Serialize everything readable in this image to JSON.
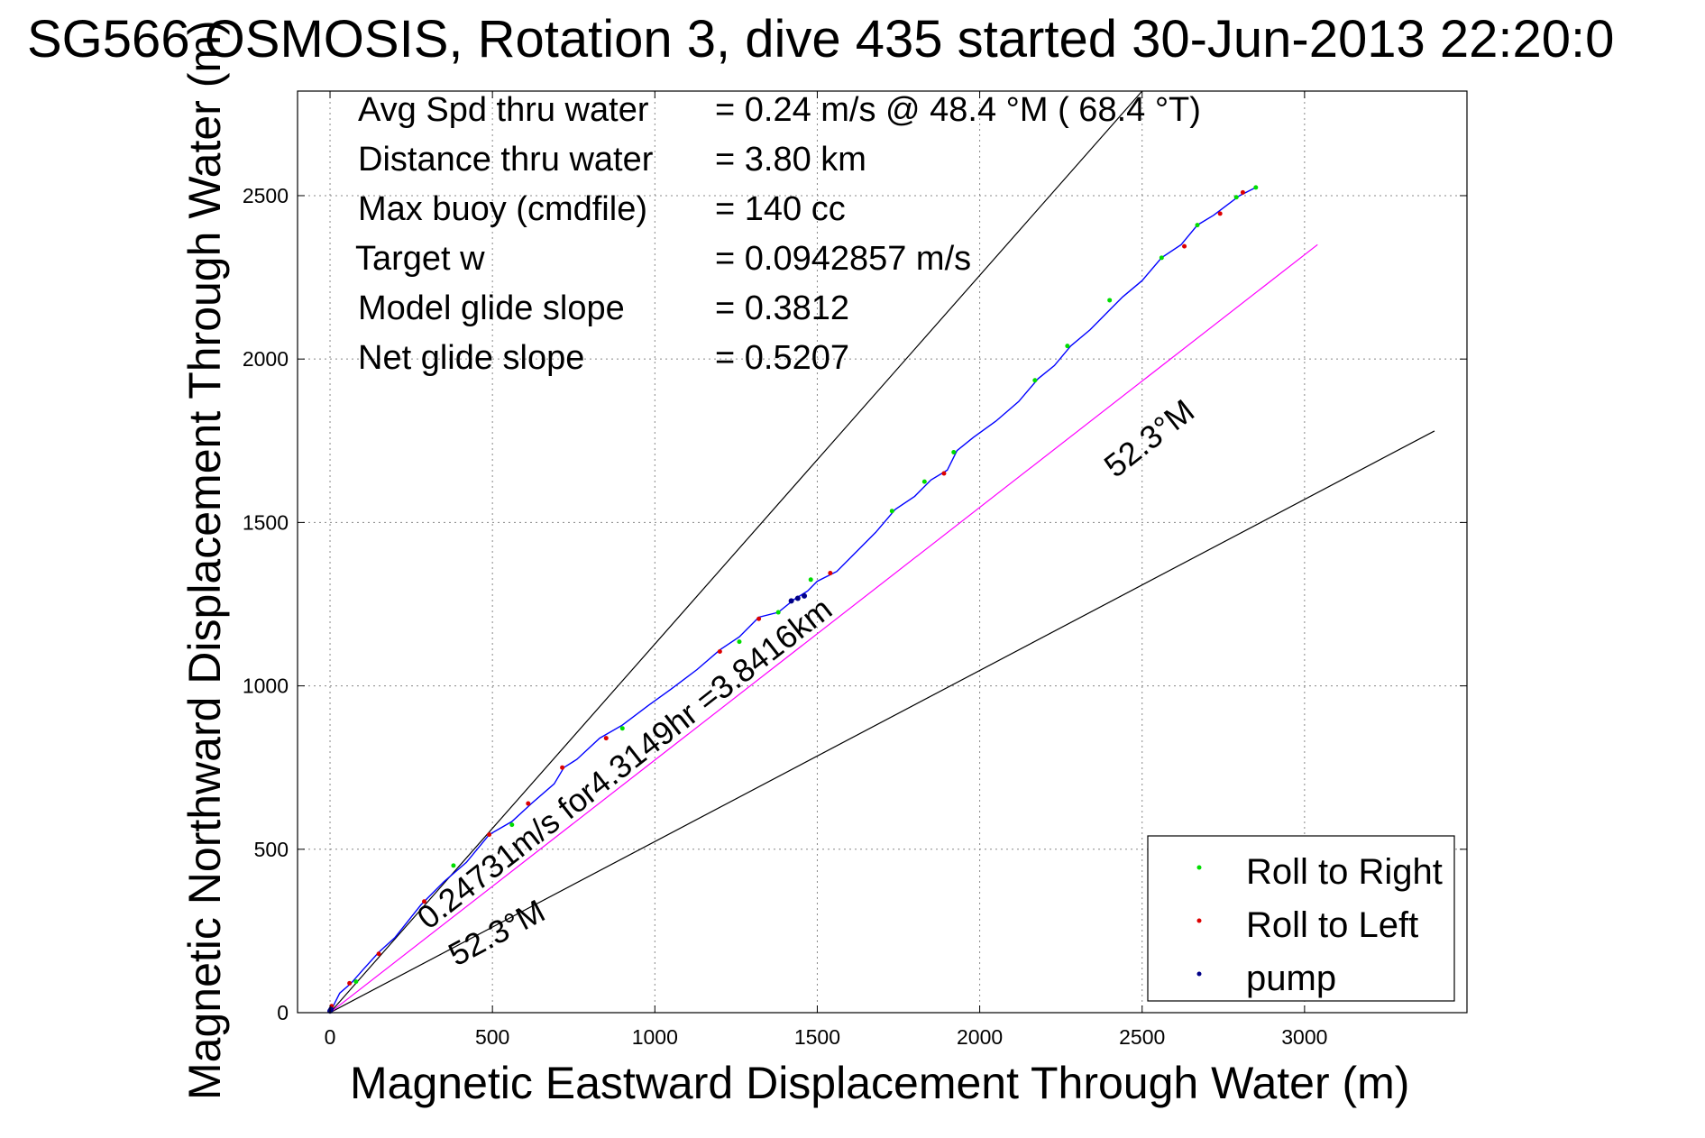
{
  "chart_data": {
    "type": "line",
    "title": "SG566 OSMOSIS, Rotation 3, dive 435 started 30-Jun-2013 22:20:0",
    "xlabel": "Magnetic Eastward Displacement Through Water (m)",
    "ylabel": "Magnetic Northward Displacement Through Water (m)",
    "xlim": [
      -100,
      3500
    ],
    "ylim": [
      0,
      2820
    ],
    "xticks": [
      "0",
      "500",
      "1000",
      "1500",
      "2000",
      "2500",
      "3000"
    ],
    "xtick_values": [
      0,
      500,
      1000,
      1500,
      2000,
      2500,
      3000
    ],
    "yticks": [
      "0",
      "500",
      "1000",
      "1500",
      "2000",
      "2500"
    ],
    "ytick_values": [
      0,
      500,
      1000,
      1500,
      2000,
      2500
    ],
    "grid": true,
    "stats": [
      {
        "label": "Avg Spd thru water",
        "value": "=  0.24 m/s @  48.4 °M ( 68.4 °T)"
      },
      {
        "label": "Distance thru water",
        "value": "=  3.80 km"
      },
      {
        "label": "Max buoy (cmdfile)",
        "value": "= 140 cc"
      },
      {
        "label": "Target w",
        "value": "= 0.0942857 m/s"
      },
      {
        "label": "Model glide slope",
        "value": "= 0.3812"
      },
      {
        "label": "Net glide slope",
        "value": "= 0.5207"
      }
    ],
    "annotations": {
      "upper_heading": "52.3°M",
      "lower_heading": "52.3°M",
      "course_label": "0.24731m/s for4.3149hr =3.8416km"
    },
    "reference_lines": [
      {
        "name": "upper",
        "color": "#000000",
        "points": [
          [
            0,
            0
          ],
          [
            2500,
            2820
          ]
        ]
      },
      {
        "name": "lower",
        "color": "#000000",
        "points": [
          [
            0,
            0
          ],
          [
            3400,
            1780
          ]
        ]
      },
      {
        "name": "heading",
        "color": "#ff00ff",
        "points": [
          [
            0,
            0
          ],
          [
            3040,
            2350
          ]
        ]
      }
    ],
    "track": {
      "color": "#0000ff",
      "x": [
        0,
        15,
        30,
        65,
        100,
        150,
        200,
        280,
        350,
        420,
        490,
        560,
        620,
        690,
        720,
        760,
        830,
        900,
        980,
        1050,
        1130,
        1200,
        1260,
        1320,
        1380,
        1430,
        1470,
        1500,
        1560,
        1620,
        1680,
        1740,
        1800,
        1850,
        1900,
        1930,
        1980,
        2050,
        2120,
        2180,
        2230,
        2280,
        2340,
        2400,
        2440,
        2500,
        2560,
        2620,
        2670,
        2720,
        2760,
        2800,
        2850
      ],
      "y": [
        0,
        30,
        60,
        90,
        130,
        185,
        230,
        330,
        400,
        460,
        545,
        585,
        640,
        700,
        750,
        775,
        840,
        880,
        940,
        990,
        1050,
        1110,
        1150,
        1210,
        1225,
        1265,
        1290,
        1320,
        1350,
        1410,
        1470,
        1540,
        1580,
        1630,
        1660,
        1720,
        1760,
        1810,
        1870,
        1940,
        1980,
        2040,
        2090,
        2150,
        2190,
        2240,
        2310,
        2350,
        2410,
        2440,
        2470,
        2500,
        2525
      ]
    },
    "series": [
      {
        "name": "Roll to Right",
        "color": "#00dd00",
        "points": [
          [
            80,
            95
          ],
          [
            380,
            450
          ],
          [
            560,
            575
          ],
          [
            900,
            870
          ],
          [
            1260,
            1135
          ],
          [
            1380,
            1225
          ],
          [
            1480,
            1325
          ],
          [
            1730,
            1535
          ],
          [
            1830,
            1625
          ],
          [
            1920,
            1715
          ],
          [
            2170,
            1935
          ],
          [
            2270,
            2040
          ],
          [
            2400,
            2180
          ],
          [
            2560,
            2310
          ],
          [
            2670,
            2410
          ],
          [
            2790,
            2495
          ],
          [
            2850,
            2525
          ]
        ]
      },
      {
        "name": "Roll to Left",
        "color": "#dd0000",
        "points": [
          [
            5,
            20
          ],
          [
            60,
            90
          ],
          [
            150,
            180
          ],
          [
            290,
            340
          ],
          [
            490,
            545
          ],
          [
            610,
            640
          ],
          [
            715,
            750
          ],
          [
            850,
            840
          ],
          [
            1200,
            1105
          ],
          [
            1320,
            1205
          ],
          [
            1540,
            1345
          ],
          [
            1890,
            1650
          ],
          [
            2630,
            2345
          ],
          [
            2740,
            2445
          ],
          [
            2810,
            2510
          ]
        ]
      },
      {
        "name": "pump",
        "color": "#000088",
        "points": [
          [
            1420,
            1260
          ],
          [
            1440,
            1268
          ],
          [
            1460,
            1275
          ],
          [
            0,
            5
          ],
          [
            3,
            10
          ]
        ]
      }
    ],
    "legend": {
      "placement": "bottom-right",
      "entries": [
        "Roll to Right",
        "Roll to Left",
        "pump"
      ]
    }
  }
}
